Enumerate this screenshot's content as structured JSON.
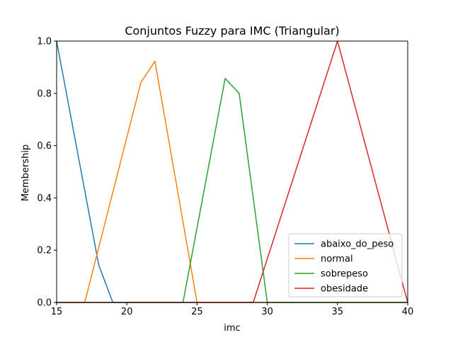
{
  "chart_data": {
    "type": "line",
    "title": "Conjuntos Fuzzy para IMC (Triangular)",
    "xlabel": "imc",
    "ylabel": "Membership",
    "xlim": [
      15,
      40
    ],
    "ylim": [
      0,
      1.0
    ],
    "xticks": [
      15,
      20,
      25,
      30,
      35,
      40
    ],
    "xtick_labels": [
      "15",
      "20",
      "25",
      "30",
      "35",
      "40"
    ],
    "yticks": [
      0.0,
      0.2,
      0.4,
      0.6,
      0.8,
      1.0
    ],
    "ytick_labels": [
      "0.0",
      "0.2",
      "0.4",
      "0.6",
      "0.8",
      "1.0"
    ],
    "grid": false,
    "legend_position": "bottom-right",
    "series": [
      {
        "name": "abaixo_do_peso",
        "color": "#1f77b4",
        "x": [
          15,
          18,
          19,
          40
        ],
        "y": [
          1.0,
          0.143,
          0.0,
          0.0
        ]
      },
      {
        "name": "normal",
        "color": "#ff7f0e",
        "x": [
          15,
          17,
          21,
          22,
          25,
          40
        ],
        "y": [
          0.0,
          0.0,
          0.842,
          0.923,
          0.0,
          0.0
        ]
      },
      {
        "name": "sobrepeso",
        "color": "#2ca02c",
        "x": [
          15,
          24,
          27,
          28,
          30,
          40
        ],
        "y": [
          0.0,
          0.0,
          0.857,
          0.8,
          0.0,
          0.0
        ]
      },
      {
        "name": "obesidade",
        "color": "#d62728",
        "x": [
          15,
          29,
          35,
          40
        ],
        "y": [
          0.0,
          0.0,
          1.0,
          0.0
        ]
      }
    ]
  }
}
